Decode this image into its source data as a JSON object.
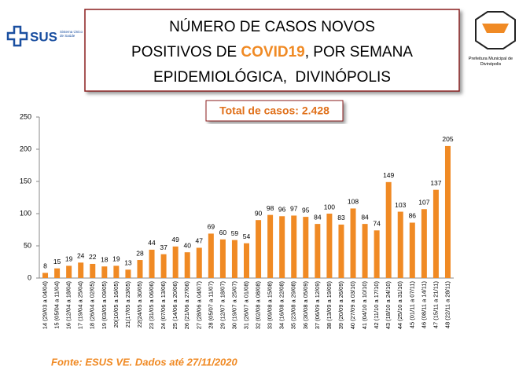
{
  "logo_left": {
    "text": "SUS",
    "subtitle": "Sistema Único de Saúde"
  },
  "logo_right": {
    "text": "Prefeitura Municipal de Divinópolis"
  },
  "chart_data": {
    "type": "bar",
    "title": {
      "line1": "NÚMERO DE CASOS NOVOS",
      "line2_before": "POSITIVOS DE ",
      "line2_highlight": "COVID19",
      "line2_after": ", POR SEMANA",
      "line3": "EPIDEMIOLÓGICA,  DIVINÓPOLIS"
    },
    "annotation": "Total de casos: 2.428",
    "source": "Fonte: ESUS VE. Dados até 27/11/2020",
    "categories": [
      "14 (29/03 a 04/04)",
      "15 (05/04 a 11/04)",
      "16 (12/04 a 18/04)",
      "17 (19/04 a 25/04)",
      "18 (26/04 a 02/05)",
      "19 (03/05 a 09/05)",
      "20(10/05 a 16/05)",
      "21(17/05 a 23/05)",
      "22(24/05 a 30/05)",
      "23 (31/05 a 06/06)",
      "24 (07/06 a 13/06)",
      "25 (14/06 a 20/06)",
      "26 (21/06 a 27/06)",
      "27 (28/06 a 04/07)",
      "28 (05/07 a 11/07)",
      "29 (12/07 a 18/07)",
      "30 (19/07 a 25/07)",
      "31 (26/07 a 01/08)",
      "32 (02/08 a 08/08)",
      "33 (09/08 a 15/08)",
      "34 (16/08 a 22/08)",
      "35 (23/08 a 29/08)",
      "36 (30/08 a 05/09)",
      "37 (06/09 a 12/09)",
      "38 (13/09 a 19/09)",
      "39 (20/09 a 26/09)",
      "40 (27/09 a 03/10)",
      "41 (04/10 a 10/10)",
      "42 (11/10 a 17/10)",
      "43 (18/10 a 24/10)",
      "44 (25/10 a 31/10)",
      "45 (01/11 a 07/11)",
      "46 (08/11 a 14/11)",
      "47 (15/11 a 21/11)",
      "48 (22/11 a 28/11)"
    ],
    "values": [
      8,
      15,
      19,
      24,
      22,
      18,
      19,
      13,
      28,
      44,
      37,
      49,
      40,
      47,
      69,
      60,
      59,
      54,
      90,
      98,
      96,
      97,
      95,
      84,
      100,
      83,
      108,
      84,
      74,
      149,
      103,
      86,
      107,
      137,
      205
    ],
    "color": "#f08a24",
    "ylim": [
      0,
      250
    ],
    "yticks": [
      0,
      50,
      100,
      150,
      200,
      250
    ]
  }
}
